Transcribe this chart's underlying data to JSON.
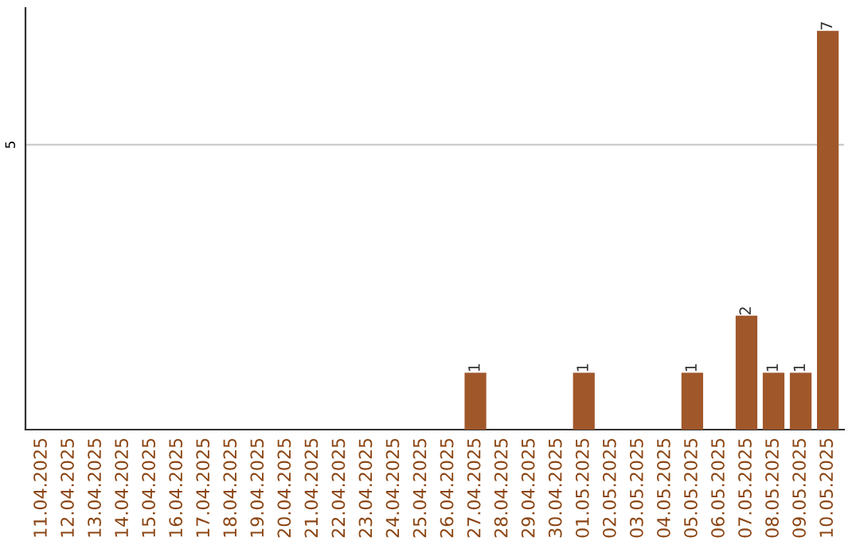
{
  "chart_data": {
    "type": "bar",
    "categories": [
      "11.04.2025",
      "12.04.2025",
      "13.04.2025",
      "14.04.2025",
      "15.04.2025",
      "16.04.2025",
      "17.04.2025",
      "18.04.2025",
      "19.04.2025",
      "20.04.2025",
      "21.04.2025",
      "22.04.2025",
      "23.04.2025",
      "24.04.2025",
      "25.04.2025",
      "26.04.2025",
      "27.04.2025",
      "28.04.2025",
      "29.04.2025",
      "30.04.2025",
      "01.05.2025",
      "02.05.2025",
      "03.05.2025",
      "04.05.2025",
      "05.05.2025",
      "06.05.2025",
      "07.05.2025",
      "08.05.2025",
      "09.05.2025",
      "10.05.2025"
    ],
    "values": [
      null,
      null,
      null,
      null,
      null,
      null,
      null,
      null,
      null,
      null,
      null,
      null,
      null,
      null,
      null,
      null,
      1,
      null,
      null,
      null,
      1,
      null,
      null,
      null,
      1,
      null,
      2,
      1,
      1,
      7
    ],
    "data_labels": true,
    "color": "#a0572a",
    "ylim": [
      0,
      7.4
    ],
    "yticks": [
      5
    ],
    "grid": "y"
  }
}
